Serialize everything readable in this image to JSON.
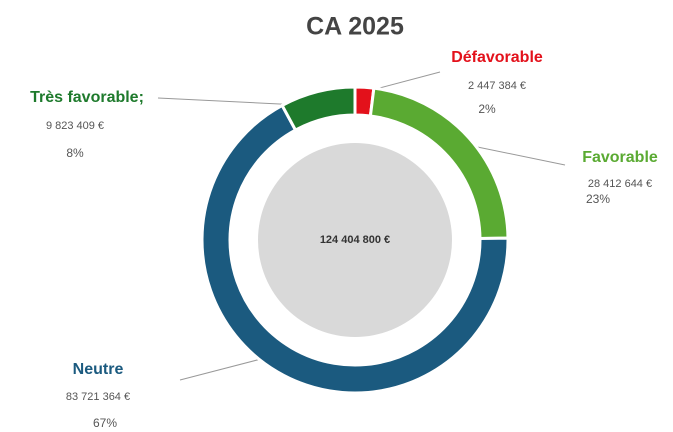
{
  "chart_data": {
    "type": "donut",
    "title": "CA 2025",
    "categories": [
      "Défavorable",
      "Favorable",
      "Neutre",
      "Très favorable;"
    ],
    "values": [
      2447384,
      28412644,
      83721364,
      9823409
    ],
    "value_labels": [
      "2 447 384 €",
      "28 412 644 €",
      "83 721 364 €",
      "9 823 409 €"
    ],
    "percents": [
      {
        "value": 2,
        "label": "2%"
      },
      {
        "value": 23,
        "label": "23%"
      },
      {
        "value": 67,
        "label": "67%"
      },
      {
        "value": 8,
        "label": "8%"
      }
    ],
    "colors": [
      "#e3111b",
      "#5aaa32",
      "#1b5a7f",
      "#1e7a2c"
    ],
    "total": {
      "value": 124404800,
      "label": "124 404 800 €"
    }
  }
}
